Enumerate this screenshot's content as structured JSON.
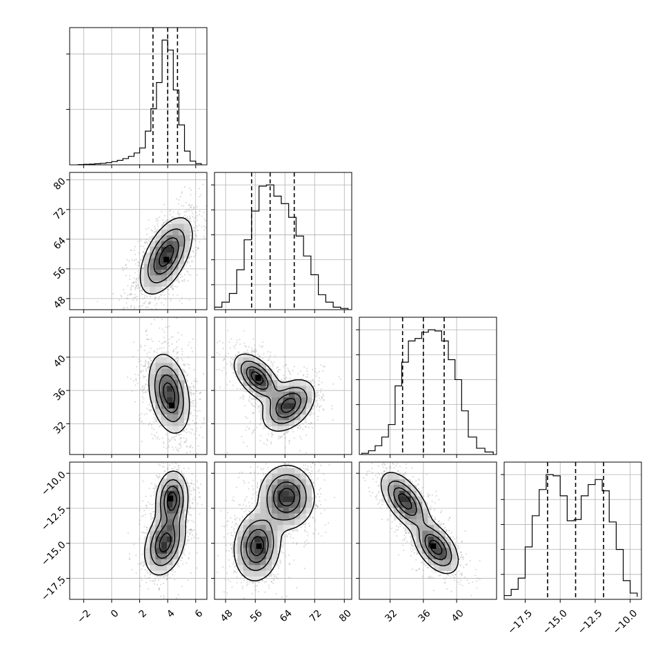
{
  "chart_data": {
    "type": "corner",
    "grid": true,
    "parameters": [
      {
        "index": 0,
        "range": [
          -3.0,
          6.8
        ],
        "ticks": [
          -2,
          0,
          2,
          4,
          6
        ],
        "tick_labels": [
          "−2",
          "0",
          "2",
          "4",
          "6"
        ],
        "quantiles": [
          2.95,
          4.0,
          4.7
        ]
      },
      {
        "index": 1,
        "range": [
          45.0,
          82.0
        ],
        "ticks": [
          48,
          56,
          64,
          72,
          80
        ],
        "tick_labels": [
          "48",
          "56",
          "64",
          "72",
          "80"
        ],
        "quantiles": [
          55.0,
          60.0,
          66.5
        ]
      },
      {
        "index": 2,
        "range": [
          28.3,
          44.8
        ],
        "ticks": [
          32,
          36,
          40
        ],
        "tick_labels": [
          "32",
          "36",
          "40"
        ],
        "quantiles": [
          33.5,
          36.0,
          38.5
        ]
      },
      {
        "index": 3,
        "range": [
          -19.0,
          -9.2
        ],
        "ticks": [
          -17.5,
          -15.0,
          -12.5,
          -10.0
        ],
        "tick_labels": [
          "−17.5",
          "−15.0",
          "−12.5",
          "−10.0"
        ],
        "quantiles": [
          -15.9,
          -13.9,
          -11.9
        ]
      }
    ],
    "histograms": [
      {
        "param": 0,
        "edges": [
          -2.4,
          -2.0,
          -1.6,
          -1.2,
          -0.8,
          -0.4,
          0.0,
          0.4,
          0.8,
          1.2,
          1.6,
          2.0,
          2.4,
          2.8,
          3.2,
          3.6,
          4.0,
          4.4,
          4.8,
          5.2,
          5.6,
          6.0,
          6.4
        ],
        "counts": [
          0.2,
          0.4,
          0.6,
          0.9,
          1.2,
          1.8,
          2.6,
          3.6,
          5.0,
          6.8,
          9.5,
          13.5,
          27.0,
          45.0,
          66.0,
          100.0,
          92.0,
          60.0,
          32.0,
          11.0,
          3.0,
          1.0
        ]
      },
      {
        "param": 1,
        "edges": [
          45,
          47,
          49,
          51,
          53,
          55,
          57,
          59,
          61,
          63,
          65,
          67,
          69,
          71,
          73,
          75,
          77,
          79,
          81
        ],
        "counts": [
          2,
          6,
          13,
          32,
          56,
          79,
          99,
          100,
          91,
          85,
          74,
          59,
          43,
          28,
          12,
          6,
          2,
          1
        ]
      },
      {
        "param": 2,
        "edges": [
          28.6,
          29.4,
          30.2,
          31.0,
          31.8,
          32.6,
          33.4,
          34.2,
          35.0,
          35.8,
          36.6,
          37.4,
          38.2,
          39.0,
          39.8,
          40.6,
          41.4,
          42.4,
          43.4,
          44.4
        ],
        "counts": [
          1,
          3,
          7,
          14,
          24,
          55,
          74,
          91,
          93,
          98,
          100,
          99,
          91,
          76,
          60,
          35,
          14,
          5,
          2
        ]
      },
      {
        "param": 3,
        "edges": [
          -19.0,
          -18.5,
          -18.0,
          -17.5,
          -17.0,
          -16.5,
          -16.0,
          -15.5,
          -15.0,
          -14.5,
          -14.0,
          -13.5,
          -13.0,
          -12.5,
          -12.0,
          -11.5,
          -11.0,
          -10.5,
          -10.0,
          -9.5
        ],
        "counts": [
          3,
          8,
          17,
          42,
          67,
          88,
          100,
          99,
          83,
          63,
          64,
          83,
          92,
          96,
          87,
          62,
          40,
          15,
          5,
          2
        ]
      }
    ],
    "pairs": [
      {
        "x": 0,
        "y": 1,
        "modes": [
          {
            "mean": [
              3.9,
              59.5
            ],
            "sd": [
              0.9,
              5.0
            ],
            "rho": 0.55,
            "weight": 1.0
          }
        ],
        "density_peak": [
          3.9,
          58.5
        ]
      },
      {
        "x": 0,
        "y": 2,
        "modes": [
          {
            "mean": [
              4.1,
              35.6
            ],
            "sd": [
              0.7,
              2.3
            ],
            "rho": -0.3,
            "weight": 1.0
          }
        ],
        "density_peak": [
          4.3,
          34.2
        ]
      },
      {
        "x": 1,
        "y": 2,
        "modes": [
          {
            "mean": [
              56.5,
              37.5
            ],
            "sd": [
              3.0,
              1.4
            ],
            "rho": -0.55,
            "weight": 0.5
          },
          {
            "mean": [
              65.0,
              34.2
            ],
            "sd": [
              3.4,
              1.5
            ],
            "rho": 0.4,
            "weight": 0.5
          }
        ],
        "density_peak": [
          56.8,
          37.5
        ]
      },
      {
        "x": 0,
        "y": 3,
        "modes": [
          {
            "mean": [
              4.3,
              -11.9
            ],
            "sd": [
              0.55,
              1.0
            ],
            "rho": 0.1,
            "weight": 0.5
          },
          {
            "mean": [
              3.8,
              -15.0
            ],
            "sd": [
              0.7,
              1.1
            ],
            "rho": 0.3,
            "weight": 0.5
          }
        ],
        "density_peak": [
          4.2,
          -11.8
        ]
      },
      {
        "x": 1,
        "y": 3,
        "modes": [
          {
            "mean": [
              64.5,
              -11.7
            ],
            "sd": [
              3.6,
              1.1
            ],
            "rho": 0.0,
            "weight": 0.5
          },
          {
            "mean": [
              56.5,
              -15.2
            ],
            "sd": [
              3.0,
              1.2
            ],
            "rho": 0.1,
            "weight": 0.5
          }
        ],
        "density_peak": [
          57.0,
          -15.2
        ]
      },
      {
        "x": 2,
        "y": 3,
        "modes": [
          {
            "mean": [
              33.8,
              -12.0
            ],
            "sd": [
              1.4,
              1.0
            ],
            "rho": -0.6,
            "weight": 0.5
          },
          {
            "mean": [
              37.5,
              -15.3
            ],
            "sd": [
              1.3,
              0.9
            ],
            "rho": -0.5,
            "weight": 0.5
          }
        ],
        "density_peak": [
          37.2,
          -15.2
        ]
      }
    ]
  }
}
